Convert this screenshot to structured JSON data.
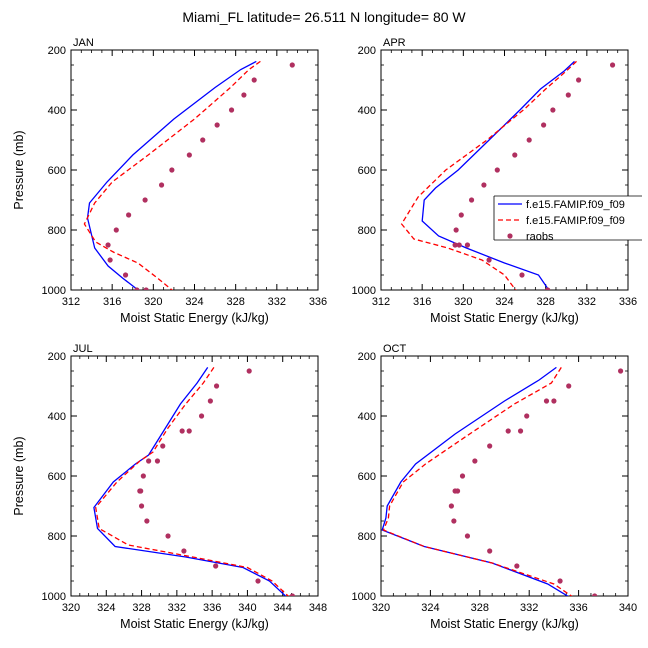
{
  "figure": {
    "title": "Miami_FL  latitude= 26.511 N longitude= 80 W"
  },
  "colors": {
    "series_1": "#0000ff",
    "series_2": "#ff0000",
    "raobs": "#b03060",
    "axes": "#000000"
  },
  "legend": {
    "placement": "right of APR panel",
    "entries": [
      {
        "label": "f.e15.FAMIP.f09_f09",
        "style": "solid",
        "color": "#0000ff"
      },
      {
        "label": "f.e15.FAMIP.f09_f09",
        "style": "dashed",
        "color": "#ff0000"
      },
      {
        "label": "raobs",
        "style": "marker",
        "color": "#b03060"
      }
    ]
  },
  "chart_data": [
    {
      "type": "line",
      "panel": "JAN",
      "xlabel": "Moist Static Energy (kJ/kg)",
      "ylabel": "Pressure (mb)",
      "xlim": [
        312,
        336
      ],
      "ylim": [
        1000,
        200
      ],
      "y_reversed": true,
      "xticks": [
        312,
        316,
        320,
        324,
        328,
        332,
        336
      ],
      "yticks": [
        200,
        400,
        600,
        800,
        1000
      ],
      "grid": false,
      "series": [
        {
          "name": "f.e15.FAMIP.f09_f09",
          "style": "solid",
          "color": "#0000ff",
          "x": [
            330.0,
            328.5,
            326.0,
            322.0,
            318.0,
            315.5,
            313.8,
            313.6,
            314.3,
            315.6,
            317.0,
            318.7
          ],
          "y": [
            238,
            265,
            325,
            430,
            550,
            640,
            710,
            760,
            860,
            920,
            960,
            1005
          ]
        },
        {
          "name": "f.e15.FAMIP.f09_f09",
          "style": "dashed",
          "color": "#ff0000",
          "x": [
            330.4,
            329.3,
            327.5,
            324.0,
            319.5,
            316.0,
            314.3,
            313.3,
            314.4,
            316.2,
            318.5,
            320.4,
            322.0
          ],
          "y": [
            238,
            265,
            325,
            430,
            550,
            640,
            710,
            780,
            840,
            875,
            910,
            960,
            1005
          ]
        },
        {
          "name": "raobs",
          "style": "marker",
          "color": "#b03060",
          "x": [
            333.5,
            329.8,
            328.8,
            327.6,
            326.2,
            324.8,
            323.5,
            321.8,
            320.8,
            319.2,
            317.6,
            316.4,
            315.6,
            315.8,
            317.3,
            318.4,
            319.3
          ],
          "y": [
            250,
            300,
            350,
            400,
            450,
            500,
            550,
            600,
            650,
            700,
            750,
            800,
            850,
            900,
            950,
            1000,
            1000
          ]
        }
      ]
    },
    {
      "type": "line",
      "panel": "APR",
      "xlabel": "Moist Static Energy (kJ/kg)",
      "ylabel": "",
      "xlim": [
        312,
        336
      ],
      "ylim": [
        1000,
        200
      ],
      "y_reversed": true,
      "xticks": [
        312,
        316,
        320,
        324,
        328,
        332,
        336
      ],
      "yticks": [
        200,
        400,
        600,
        800,
        1000
      ],
      "grid": false,
      "series": [
        {
          "name": "f.e15.FAMIP.f09_f09",
          "style": "solid",
          "color": "#0000ff",
          "x": [
            330.8,
            329.8,
            327.5,
            325.5,
            322.5,
            319.5,
            317.3,
            316.2,
            316.0,
            317.6,
            320.3,
            324.0,
            327.3,
            328.4
          ],
          "y": [
            238,
            270,
            330,
            400,
            500,
            600,
            660,
            700,
            770,
            820,
            860,
            910,
            950,
            1005
          ]
        },
        {
          "name": "f.e15.FAMIP.f09_f09",
          "style": "dashed",
          "color": "#ff0000",
          "x": [
            331.0,
            330.0,
            328.0,
            326.0,
            322.3,
            318.3,
            315.6,
            314.0,
            315.2,
            318.5,
            321.8,
            324.0,
            325.2
          ],
          "y": [
            238,
            270,
            330,
            395,
            500,
            600,
            690,
            780,
            830,
            860,
            900,
            950,
            1005
          ]
        },
        {
          "name": "raobs",
          "style": "marker",
          "color": "#b03060",
          "x": [
            334.5,
            331.2,
            330.2,
            328.7,
            327.8,
            326.4,
            325.0,
            323.3,
            322.0,
            320.8,
            319.8,
            319.3,
            319.2,
            319.6,
            320.4,
            322.5,
            325.7,
            328.2
          ],
          "y": [
            250,
            300,
            350,
            400,
            450,
            500,
            550,
            600,
            650,
            700,
            750,
            800,
            850,
            850,
            850,
            900,
            950,
            1000
          ]
        }
      ]
    },
    {
      "type": "line",
      "panel": "JUL",
      "xlabel": "Moist Static Energy (kJ/kg)",
      "ylabel": "Pressure (mb)",
      "xlim": [
        320,
        348
      ],
      "ylim": [
        1000,
        200
      ],
      "y_reversed": true,
      "xticks": [
        320,
        324,
        328,
        332,
        336,
        340,
        344,
        348
      ],
      "yticks": [
        200,
        400,
        600,
        800,
        1000
      ],
      "grid": false,
      "series": [
        {
          "name": "f.e15.FAMIP.f09_f09",
          "style": "solid",
          "color": "#0000ff",
          "x": [
            335.5,
            334.3,
            332.4,
            330.5,
            328.8,
            327.3,
            324.8,
            322.6,
            323.0,
            325.0,
            333.0,
            339.5,
            342.5,
            344.5
          ],
          "y": [
            238,
            290,
            360,
            450,
            530,
            560,
            620,
            705,
            775,
            835,
            870,
            905,
            950,
            1005
          ]
        },
        {
          "name": "f.e15.FAMIP.f09_f09",
          "style": "dashed",
          "color": "#ff0000",
          "x": [
            336.2,
            335.0,
            333.0,
            331.0,
            329.3,
            327.8,
            325.2,
            322.8,
            323.2,
            326.5,
            333.8,
            340.0,
            342.8,
            344.8
          ],
          "y": [
            238,
            290,
            360,
            440,
            520,
            550,
            620,
            705,
            775,
            830,
            870,
            905,
            950,
            1005
          ]
        },
        {
          "name": "raobs",
          "style": "marker",
          "color": "#b03060",
          "x": [
            340.2,
            336.5,
            335.8,
            334.8,
            333.4,
            332.6,
            330.4,
            329.8,
            328.8,
            328.2,
            327.9,
            327.8,
            328.0,
            328.6,
            331.0,
            332.8,
            336.4,
            341.2,
            345.1
          ],
          "y": [
            250,
            300,
            350,
            400,
            450,
            450,
            500,
            550,
            550,
            600,
            650,
            650,
            700,
            750,
            800,
            850,
            900,
            950,
            1000
          ]
        }
      ]
    },
    {
      "type": "line",
      "panel": "OCT",
      "xlabel": "Moist Static Energy (kJ/kg)",
      "ylabel": "",
      "xlim": [
        320,
        340
      ],
      "ylim": [
        1000,
        200
      ],
      "y_reversed": true,
      "xticks": [
        320,
        324,
        328,
        332,
        336,
        340
      ],
      "yticks": [
        200,
        400,
        600,
        800,
        1000
      ],
      "grid": false,
      "series": [
        {
          "name": "f.e15.FAMIP.f09_f09",
          "style": "solid",
          "color": "#0000ff",
          "x": [
            334.2,
            332.8,
            330.0,
            326.0,
            322.8,
            321.6,
            320.5,
            320.4,
            320.1,
            323.5,
            329.0,
            333.5,
            335.3
          ],
          "y": [
            238,
            280,
            350,
            460,
            560,
            620,
            700,
            740,
            780,
            835,
            890,
            960,
            1005
          ]
        },
        {
          "name": "f.e15.FAMIP.f09_f09",
          "style": "dashed",
          "color": "#ff0000",
          "x": [
            334.6,
            333.8,
            330.8,
            327.0,
            323.6,
            321.8,
            320.7,
            320.6,
            320.2,
            323.5,
            329.0,
            334.0,
            335.6
          ],
          "y": [
            238,
            290,
            360,
            465,
            560,
            620,
            700,
            740,
            780,
            835,
            890,
            960,
            1005
          ]
        },
        {
          "name": "raobs",
          "style": "marker",
          "color": "#b03060",
          "x": [
            339.4,
            335.2,
            334.0,
            333.4,
            331.8,
            331.3,
            330.3,
            328.8,
            327.6,
            326.6,
            326.2,
            326.0,
            325.7,
            325.9,
            327.0,
            328.8,
            331.0,
            334.5,
            337.3
          ],
          "y": [
            250,
            300,
            350,
            350,
            400,
            450,
            450,
            500,
            550,
            600,
            650,
            650,
            700,
            750,
            800,
            850,
            900,
            950,
            1000
          ]
        }
      ]
    }
  ]
}
